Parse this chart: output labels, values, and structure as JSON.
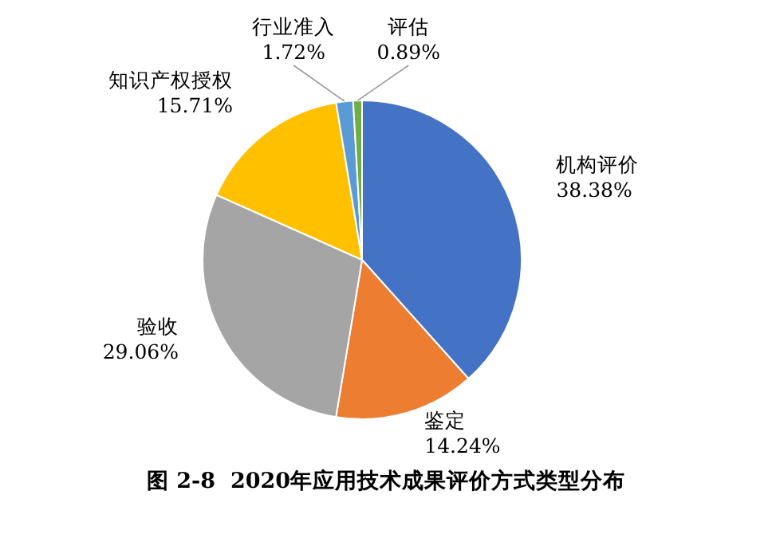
{
  "chart_data": {
    "type": "pie",
    "title": "图 2-8  2020年应用技术成果评价方式类型分布",
    "categories": [
      "机构评价",
      "鉴定",
      "验收",
      "知识产权授权",
      "行业准入",
      "评估"
    ],
    "values": [
      38.38,
      14.24,
      29.06,
      15.71,
      1.72,
      0.89
    ],
    "colors": [
      "#4472c4",
      "#ed7d31",
      "#a5a5a5",
      "#ffc000",
      "#5b9bd5",
      "#70ad47"
    ],
    "value_labels": [
      "38.38%",
      "14.24%",
      "29.06%",
      "15.71%",
      "1.72%",
      "0.89%"
    ],
    "legend": false
  }
}
